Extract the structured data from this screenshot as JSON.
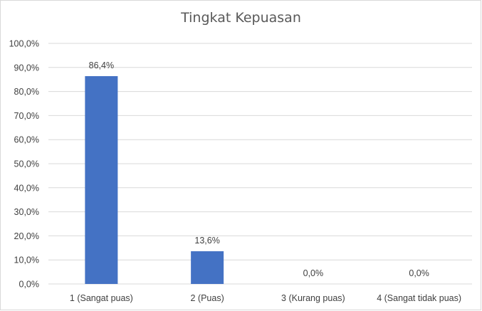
{
  "chart_data": {
    "type": "bar",
    "title": "Tingkat Kepuasan",
    "xlabel": "",
    "ylabel": "",
    "categories": [
      "1 (Sangat puas)",
      "2 (Puas)",
      "3 (Kurang puas)",
      "4 (Sangat tidak puas)"
    ],
    "values": [
      86.4,
      13.6,
      0.0,
      0.0
    ],
    "data_labels": [
      "86,4%",
      "13,6%",
      "0,0%",
      "0,0%"
    ],
    "ylim": [
      0,
      100
    ],
    "yticks": [
      0,
      10,
      20,
      30,
      40,
      50,
      60,
      70,
      80,
      90,
      100
    ],
    "ytick_labels": [
      "0,0%",
      "10,0%",
      "20,0%",
      "30,0%",
      "40,0%",
      "50,0%",
      "60,0%",
      "70,0%",
      "80,0%",
      "90,0%",
      "100,0%"
    ],
    "grid": true,
    "legend": "none",
    "bar_color": "#4472c4",
    "grid_color": "#d9d9d9"
  }
}
